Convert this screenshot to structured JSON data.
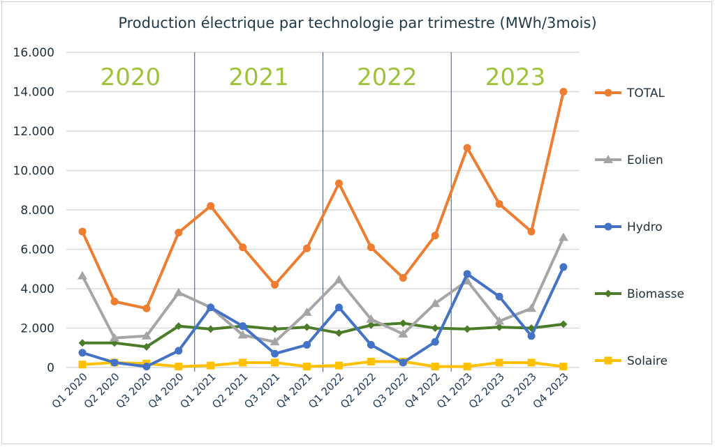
{
  "chart_data": {
    "type": "line",
    "title": "Production électrique par technologie par trimestre (MWh/3mois)",
    "xlabel": "",
    "ylabel": "",
    "ylim": [
      0,
      16000
    ],
    "yticks": [
      "0",
      "2.000",
      "4.000",
      "6.000",
      "8.000",
      "10.000",
      "12.000",
      "14.000",
      "16.000"
    ],
    "grid": true,
    "legend_placement": "right",
    "categories": [
      "Q1 2020",
      "Q2 2020",
      "Q3 2020",
      "Q4 2020",
      "Q1 2021",
      "Q2 2021",
      "Q3 2021",
      "Q4 2021",
      "Q1 2022",
      "Q2 2022",
      "Q3 2022",
      "Q4 2022",
      "Q1 2023",
      "Q2 2023",
      "Q3 2023",
      "Q4 2023"
    ],
    "annotations": [
      "2020",
      "2021",
      "2022",
      "2023"
    ],
    "series": [
      {
        "name": "TOTAL",
        "color": "#ed7d31",
        "marker": "circle",
        "values": [
          6900,
          3350,
          3000,
          6850,
          8200,
          6100,
          4200,
          6050,
          9350,
          6100,
          4550,
          6700,
          11150,
          8300,
          6900,
          14000
        ]
      },
      {
        "name": "Eolien",
        "color": "#a5a5a5",
        "marker": "triangle",
        "values": [
          4650,
          1500,
          1600,
          3800,
          3050,
          1650,
          1300,
          2800,
          4450,
          2450,
          1700,
          3250,
          4400,
          2350,
          3000,
          6600
        ]
      },
      {
        "name": "Hydro",
        "color": "#4472c4",
        "marker": "circle",
        "values": [
          750,
          250,
          50,
          850,
          3050,
          2100,
          700,
          1150,
          3050,
          1150,
          250,
          1300,
          4750,
          3600,
          1600,
          5100
        ]
      },
      {
        "name": "Biomasse",
        "color": "#4a7c2a",
        "marker": "diamond",
        "values": [
          1250,
          1250,
          1050,
          2100,
          1950,
          2100,
          1950,
          2050,
          1750,
          2150,
          2250,
          2000,
          1950,
          2050,
          2000,
          2200
        ]
      },
      {
        "name": "Solaire",
        "color": "#ffc000",
        "marker": "square",
        "values": [
          150,
          250,
          200,
          50,
          100,
          250,
          250,
          50,
          100,
          300,
          300,
          50,
          50,
          250,
          250,
          50
        ]
      }
    ]
  }
}
